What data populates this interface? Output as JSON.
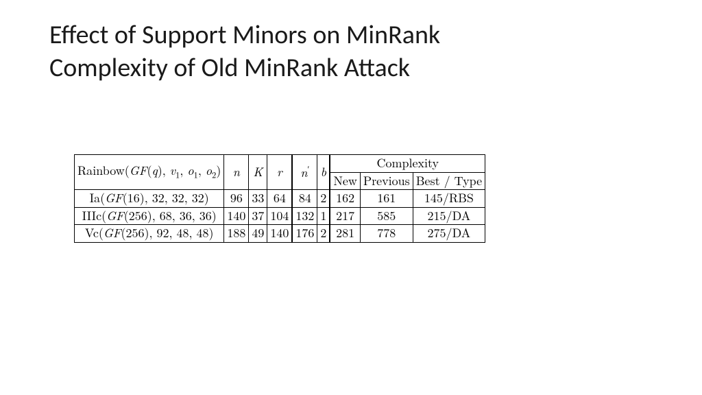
{
  "title_line1": "Effect of Support Minors on MinRank",
  "title_line2": "Complexity of Old MinRank Attack",
  "table": {
    "type": "table",
    "background_color": "#ffffff",
    "border_color": "#000000",
    "text_color": "#000000",
    "font_family_title": "Calibri",
    "font_family_table": "Latin Modern Roman / Times serif",
    "title_fontsize_pt": 28,
    "table_fontsize_pt": 14,
    "header_params": "Rainbow(GF(q), v₁, o₁, o₂)",
    "header_params_plain": "Rainbow(GF(q), v1, o1, o2)",
    "col_n": "n",
    "col_K": "K",
    "col_r": "r",
    "col_nprime": "n′",
    "col_b": "b",
    "complexity_group": "Complexity",
    "col_new": "New",
    "col_prev": "Previous",
    "col_best": "Best / Type",
    "rows": [
      {
        "param": "Ia(GF(16), 32, 32, 32)",
        "n": "96",
        "K": "33",
        "r": "64",
        "np": "84",
        "b": "2",
        "new": "162",
        "prev": "161",
        "best": "145/RBS"
      },
      {
        "param": "IIIc(GF(256), 68, 36, 36)",
        "n": "140",
        "K": "37",
        "r": "104",
        "np": "132",
        "b": "1",
        "new": "217",
        "prev": "585",
        "best": "215/DA"
      },
      {
        "param": "Vc(GF(256), 92, 48, 48)",
        "n": "188",
        "K": "49",
        "r": "140",
        "np": "176",
        "b": "2",
        "new": "281",
        "prev": "778",
        "best": "275/DA"
      }
    ],
    "column_alignment": [
      "center",
      "center",
      "center",
      "center",
      "center",
      "center",
      "center",
      "center",
      "center"
    ]
  }
}
